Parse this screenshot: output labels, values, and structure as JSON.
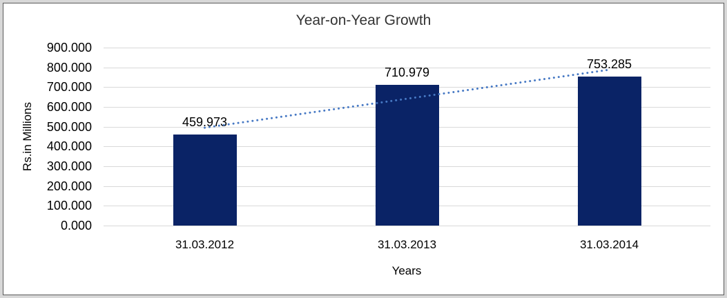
{
  "chart_data": {
    "type": "bar",
    "title": "Year-on-Year Growth",
    "xlabel": "Years",
    "ylabel": "Rs.in Millions",
    "categories": [
      "31.03.2012",
      "31.03.2013",
      "31.03.2014"
    ],
    "values": [
      459.973,
      710.979,
      753.285
    ],
    "data_labels": [
      "459.973",
      "710.979",
      "753.285"
    ],
    "ylim": [
      0,
      900
    ],
    "ytick_step": 100,
    "ytick_labels": [
      "0.000",
      "100.000",
      "200.000",
      "300.000",
      "400.000",
      "500.000",
      "600.000",
      "700.000",
      "800.000",
      "900.000"
    ],
    "grid": true,
    "legend": "none",
    "trendline": {
      "type": "linear",
      "style": "dotted"
    },
    "colors": {
      "bar": "#0A2366",
      "trendline": "#4779C4",
      "gridline": "#D9D9D9",
      "title_text": "#333333",
      "label_text": "#000000",
      "frame_border": "#595959",
      "outer_background": "#D8D8D8",
      "plot_background": "#FFFFFF"
    }
  }
}
